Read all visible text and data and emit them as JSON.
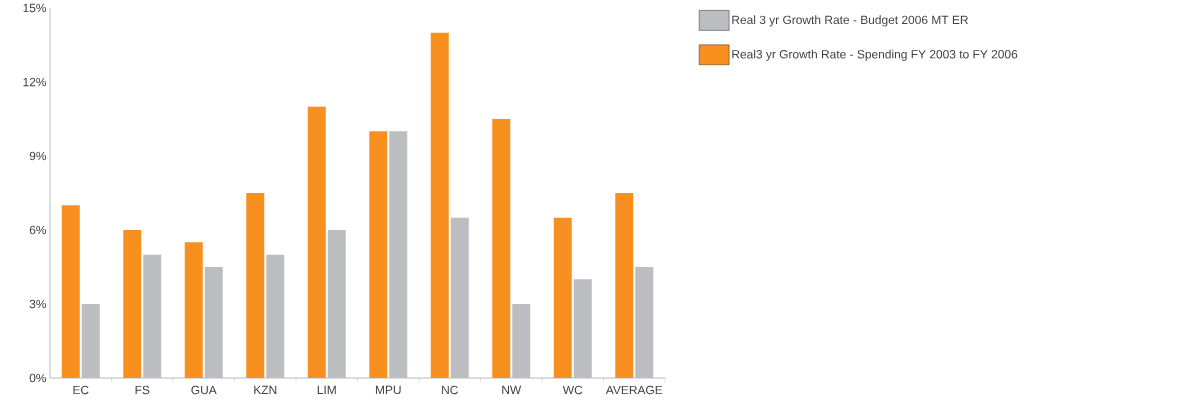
{
  "chart_data": {
    "type": "bar",
    "categories": [
      "EC",
      "FS",
      "GUA",
      "KZN",
      "LIM",
      "MPU",
      "NC",
      "NW",
      "WC",
      "AVERAGE"
    ],
    "series": [
      {
        "name": "Real 3 yr Growth Rate - Budget 2006 MT ER",
        "color": "#bcbdc1",
        "values": [
          3,
          5,
          4.5,
          5,
          6,
          10,
          6.5,
          3,
          4,
          4.5
        ]
      },
      {
        "name": "Real3 yr Growth Rate - Spending FY 2003 to FY 2006",
        "color": "#f7901e",
        "values": [
          7,
          6,
          5.5,
          7.5,
          11,
          10,
          14,
          10.5,
          6.5,
          7.5
        ]
      }
    ],
    "ylim": [
      0,
      15
    ],
    "yticks": [
      {
        "value": 0,
        "label": "0%"
      },
      {
        "value": 3,
        "label": "3%"
      },
      {
        "value": 6,
        "label": "6%"
      },
      {
        "value": 9,
        "label": "9%"
      },
      {
        "value": 12,
        "label": "12%"
      },
      {
        "value": 15,
        "label": "15%"
      }
    ],
    "grid": false,
    "legend": "top right"
  }
}
